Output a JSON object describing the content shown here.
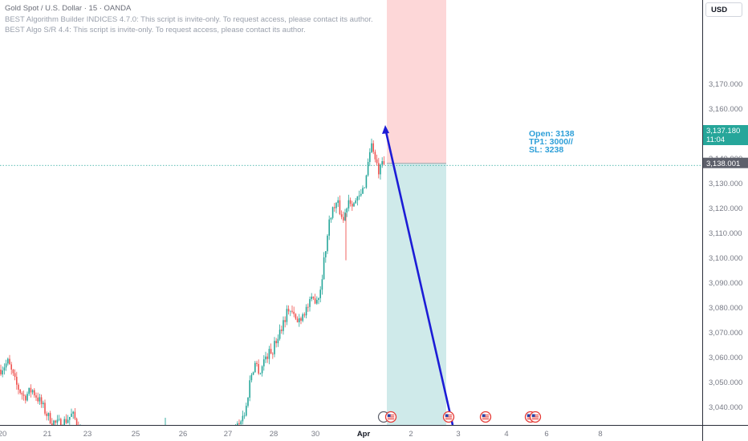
{
  "header": {
    "symbol_line": "Gold Spot / U.S. Dollar · 15 · OANDA",
    "indicator_1": "BEST Algorithm Builder INDICES 4.7.0: This script is invite-only. To request access, please contact its author.",
    "indicator_2": "BEST Algo S/R 4.4: This script is invite-only. To request access, please contact its author."
  },
  "currency_button": "USD",
  "trade": {
    "open_label": "Open: 3138",
    "tp_label": "TP1: 3000//",
    "sl_label": "SL: 3238",
    "entry_price_tag": "3,138.001"
  },
  "current_price": {
    "price": "3,137.180",
    "countdown": "11:04"
  },
  "colors": {
    "up_candle": "#26a69a",
    "down_candle": "#ef5350",
    "stop_zone": "#fdd7d8",
    "target_zone": "#cfeaea",
    "arrow": "#1c1cd6",
    "price_tag": "#26a69a",
    "entry_tag": "#5d606b"
  },
  "chart_data": {
    "type": "candlestick",
    "y_axis_ticks": [
      "3,170.000",
      "3,160.000",
      "3,150.000",
      "3,140.000",
      "3,130.000",
      "3,120.000",
      "3,110.000",
      "3,100.000",
      "3,090.000",
      "3,080.000",
      "3,070.000",
      "3,060.000",
      "3,050.000",
      "3,040.000"
    ],
    "x_axis_ticks": [
      "20",
      "21",
      "23",
      "25",
      "26",
      "27",
      "28",
      "30",
      "Apr",
      "2",
      "3",
      "4",
      "6",
      "8"
    ],
    "ylim": [
      3032,
      3184
    ],
    "price_path": [
      [
        0,
        3055
      ],
      [
        10,
        3058
      ],
      [
        20,
        3049
      ],
      [
        30,
        3044
      ],
      [
        40,
        3047
      ],
      [
        50,
        3042
      ],
      [
        60,
        3036
      ],
      [
        70,
        3033
      ],
      [
        80,
        3034
      ],
      [
        90,
        3037
      ],
      [
        100,
        3031
      ],
      [
        290,
        3031
      ],
      [
        300,
        3035
      ],
      [
        306,
        3038
      ],
      [
        312,
        3052
      ],
      [
        318,
        3058
      ],
      [
        324,
        3054
      ],
      [
        330,
        3060
      ],
      [
        340,
        3063
      ],
      [
        350,
        3072
      ],
      [
        360,
        3080
      ],
      [
        370,
        3074
      ],
      [
        380,
        3079
      ],
      [
        390,
        3083
      ],
      [
        398,
        3085
      ],
      [
        404,
        3100
      ],
      [
        412,
        3118
      ],
      [
        420,
        3122
      ],
      [
        428,
        3115
      ],
      [
        434,
        3124
      ],
      [
        442,
        3122
      ],
      [
        450,
        3125
      ],
      [
        456,
        3132
      ],
      [
        460,
        3143
      ],
      [
        464,
        3146
      ],
      [
        468,
        3138
      ],
      [
        472,
        3134
      ],
      [
        476,
        3137
      ],
      [
        480,
        3137
      ]
    ],
    "trade": {
      "entry": 3138,
      "take_profit": 3000,
      "stop_loss": 3238,
      "current_price": 3137.18
    }
  }
}
